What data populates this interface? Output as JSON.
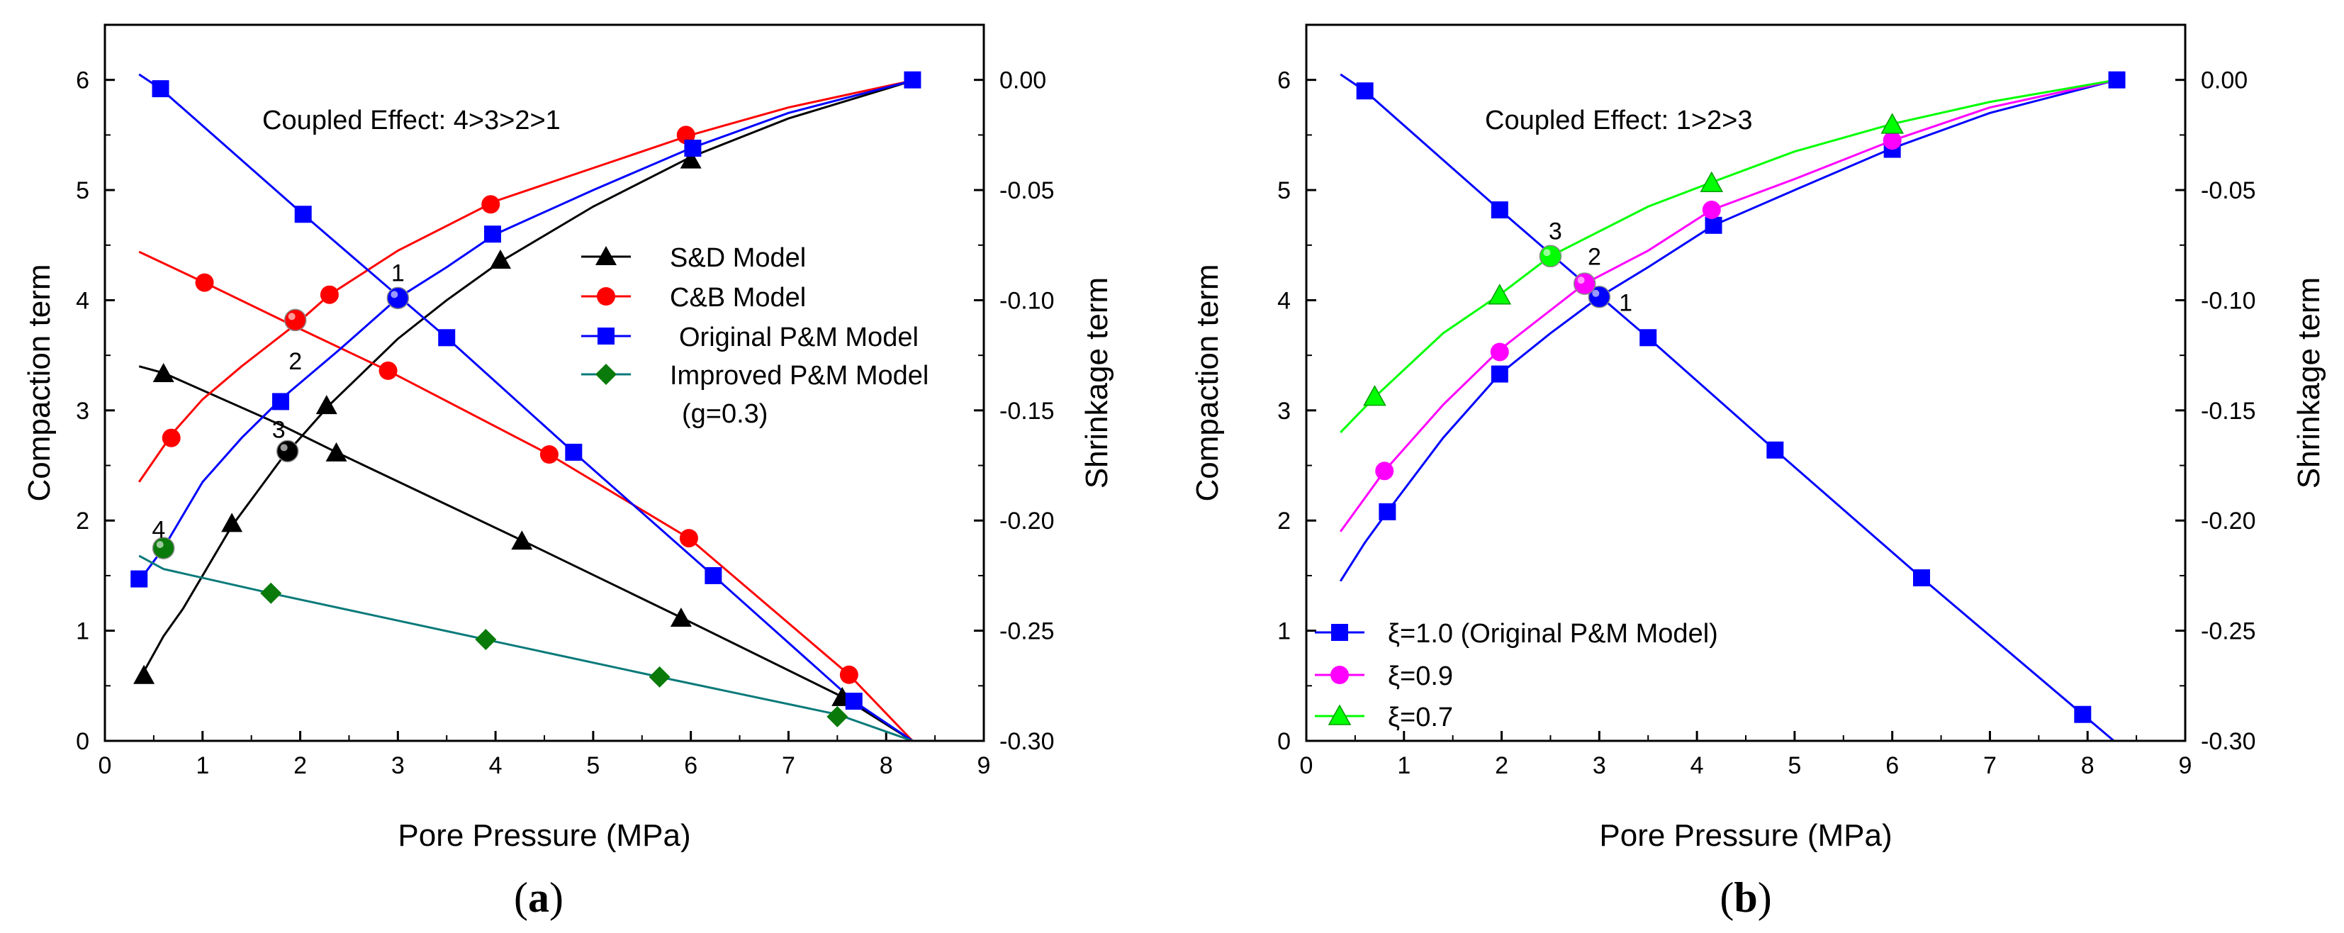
{
  "chart_data": [
    {
      "type": "line",
      "panel": "a",
      "subtitle_open": "(",
      "subtitle_letter": "a",
      "subtitle_close": ")",
      "annotation": "Coupled Effect: 4>3>2>1",
      "xlabel": "Pore Pressure (MPa)",
      "ylabel": "Compaction term",
      "y2label": "Shrinkage term",
      "xlim": [
        0,
        9
      ],
      "ylim": [
        0,
        6.5
      ],
      "y2lim": [
        -0.3,
        0.025
      ],
      "xticks": [
        "0",
        "1",
        "2",
        "3",
        "4",
        "5",
        "6",
        "7",
        "8",
        "9"
      ],
      "yticks": [
        "0",
        "1",
        "2",
        "3",
        "4",
        "5",
        "6"
      ],
      "y2ticks": [
        "-0.30",
        "-0.25",
        "-0.20",
        "-0.15",
        "-0.10",
        "-0.05",
        "0.00"
      ],
      "y2tick_values": [
        -0.3,
        -0.25,
        -0.2,
        -0.15,
        -0.1,
        -0.05,
        0
      ],
      "legend": {
        "position": "center-right",
        "entries": [
          "S&D Model",
          "C&B Model",
          "Original P&M Model",
          "Improved P&M Model"
        ],
        "extra": "(g=0.3)"
      },
      "series": [
        {
          "name": "S&D Model",
          "color": "#000000",
          "marker": "triangle",
          "compaction_line": [
            [
              0.35,
              0.55
            ],
            [
              0.6,
              0.95
            ],
            [
              0.8,
              1.2
            ],
            [
              1.3,
              1.95
            ],
            [
              1.8,
              2.55
            ],
            [
              2.3,
              3.05
            ],
            [
              3,
              3.65
            ],
            [
              3.5,
              4.0
            ],
            [
              4.05,
              4.35
            ],
            [
              5,
              4.85
            ],
            [
              6,
              5.3
            ],
            [
              7,
              5.65
            ],
            [
              8.3,
              6.0
            ]
          ],
          "compaction_markers": [
            [
              0.4,
              0.6
            ],
            [
              1.3,
              1.98
            ],
            [
              2.27,
              3.05
            ],
            [
              4.05,
              4.37
            ],
            [
              6.0,
              5.28
            ]
          ],
          "shrinkage_line": [
            [
              0.35,
              -0.13
            ],
            [
              0.6,
              -0.133
            ],
            [
              1.82,
              -0.157
            ],
            [
              2.37,
              -0.169
            ],
            [
              4.27,
              -0.209
            ],
            [
              5.9,
              -0.244
            ],
            [
              7.55,
              -0.28
            ],
            [
              8.27,
              -0.3
            ]
          ],
          "shrinkage_markers": [
            [
              0.6,
              -0.133
            ],
            [
              2.37,
              -0.169
            ],
            [
              4.27,
              -0.209
            ],
            [
              5.9,
              -0.244
            ],
            [
              7.55,
              -0.28
            ]
          ]
        },
        {
          "name": "C&B Model",
          "color": "#ff0000",
          "marker": "circle",
          "compaction_line": [
            [
              0.35,
              2.35
            ],
            [
              0.7,
              2.8
            ],
            [
              1.0,
              3.1
            ],
            [
              1.4,
              3.4
            ],
            [
              1.98,
              3.8
            ],
            [
              2.3,
              4.05
            ],
            [
              3,
              4.45
            ],
            [
              4,
              4.9
            ],
            [
              5,
              5.2
            ],
            [
              6,
              5.5
            ],
            [
              7,
              5.75
            ],
            [
              8.3,
              6.0
            ]
          ],
          "compaction_markers": [
            [
              0.68,
              2.75
            ],
            [
              2.3,
              4.05
            ],
            [
              3.95,
              4.87
            ],
            [
              5.95,
              5.5
            ]
          ],
          "shrinkage_line": [
            [
              0.35,
              -0.078
            ],
            [
              1.02,
              -0.092
            ],
            [
              1.95,
              -0.112
            ],
            [
              2.9,
              -0.132
            ],
            [
              4.55,
              -0.17
            ],
            [
              5.98,
              -0.208
            ],
            [
              7.62,
              -0.27
            ],
            [
              8.27,
              -0.3
            ]
          ],
          "shrinkage_markers": [
            [
              1.02,
              -0.092
            ],
            [
              2.9,
              -0.132
            ],
            [
              4.55,
              -0.17
            ],
            [
              5.98,
              -0.208
            ],
            [
              7.62,
              -0.27
            ]
          ]
        },
        {
          "name": "Original P&M Model",
          "color": "#0000ff",
          "marker": "square",
          "compaction_line": [
            [
              0.35,
              1.45
            ],
            [
              0.6,
              1.75
            ],
            [
              1.0,
              2.35
            ],
            [
              1.4,
              2.75
            ],
            [
              1.8,
              3.1
            ],
            [
              2.4,
              3.55
            ],
            [
              3.0,
              4.02
            ],
            [
              3.5,
              4.3
            ],
            [
              4.0,
              4.6
            ],
            [
              5,
              5.0
            ],
            [
              6,
              5.38
            ],
            [
              7,
              5.7
            ],
            [
              8.3,
              6.0
            ]
          ],
          "compaction_markers": [
            [
              0.35,
              1.47
            ],
            [
              1.8,
              3.08
            ],
            [
              3.97,
              4.6
            ],
            [
              6.02,
              5.38
            ],
            [
              8.27,
              6.0
            ]
          ],
          "shrinkage_line": [
            [
              0.35,
              0.0025
            ],
            [
              0.57,
              -0.004
            ],
            [
              2.03,
              -0.061
            ],
            [
              3.0,
              -0.098
            ],
            [
              3.5,
              -0.117
            ],
            [
              4.8,
              -0.169
            ],
            [
              6.23,
              -0.225
            ],
            [
              7.67,
              -0.282
            ],
            [
              8.27,
              -0.3
            ]
          ],
          "shrinkage_markers": [
            [
              0.57,
              -0.004
            ],
            [
              2.03,
              -0.061
            ],
            [
              3.5,
              -0.117
            ],
            [
              4.8,
              -0.169
            ],
            [
              6.23,
              -0.225
            ],
            [
              7.67,
              -0.282
            ]
          ]
        },
        {
          "name": "Improved P&M Model",
          "color": "#0a7a7a",
          "marker": "diamond",
          "shrinkage_line": [
            [
              0.35,
              -0.216
            ],
            [
              0.6,
              -0.222
            ],
            [
              1.7,
              -0.233
            ],
            [
              3.9,
              -0.254
            ],
            [
              5.68,
              -0.271
            ],
            [
              7.5,
              -0.288
            ],
            [
              8.27,
              -0.3
            ]
          ],
          "shrinkage_markers": [
            [
              1.7,
              -0.233
            ],
            [
              3.9,
              -0.254
            ],
            [
              5.68,
              -0.271
            ],
            [
              7.5,
              -0.289
            ]
          ],
          "marker_color": "#0a7a0a"
        }
      ],
      "intersections": [
        {
          "label": "1",
          "x": 3.0,
          "y": 4.02,
          "color": "#0000ff",
          "lx": 3.0,
          "ly": 4.25
        },
        {
          "label": "2",
          "x": 1.95,
          "y": 3.82,
          "color": "#ff0000",
          "lx": 1.95,
          "ly": 3.45
        },
        {
          "label": "3",
          "x": 1.87,
          "y": 2.63,
          "color": "#000000",
          "lx": 1.78,
          "ly": 2.83
        },
        {
          "label": "4",
          "x": 0.6,
          "y": 1.75,
          "color": "#0a7a0a",
          "lx": 0.55,
          "ly": 1.92
        }
      ]
    },
    {
      "type": "line",
      "panel": "b",
      "subtitle_open": "(",
      "subtitle_letter": "b",
      "subtitle_close": ")",
      "annotation": "Coupled Effect: 1>2>3",
      "xlabel": "Pore Pressure (MPa)",
      "ylabel": "Compaction term",
      "y2label": "Shrinkage term",
      "xlim": [
        0,
        9
      ],
      "ylim": [
        0,
        6.5
      ],
      "y2lim": [
        -0.3,
        0.025
      ],
      "xticks": [
        "0",
        "1",
        "2",
        "3",
        "4",
        "5",
        "6",
        "7",
        "8",
        "9"
      ],
      "yticks": [
        "0",
        "1",
        "2",
        "3",
        "4",
        "5",
        "6"
      ],
      "y2ticks": [
        "-0.30",
        "-0.25",
        "-0.20",
        "-0.15",
        "-0.10",
        "-0.05",
        "0.00"
      ],
      "y2tick_values": [
        -0.3,
        -0.25,
        -0.2,
        -0.15,
        -0.1,
        -0.05,
        0
      ],
      "legend": {
        "position": "bottom-left",
        "entries": [
          "ξ=1.0 (Original P&M Model)",
          "ξ=0.9",
          "ξ=0.7"
        ]
      },
      "series": [
        {
          "name": "ξ=1.0 (Original P&M Model)",
          "color": "#0000ff",
          "marker": "square",
          "compaction_line": [
            [
              0.35,
              1.45
            ],
            [
              0.6,
              1.8
            ],
            [
              0.83,
              2.08
            ],
            [
              1.4,
              2.75
            ],
            [
              1.98,
              3.33
            ],
            [
              2.5,
              3.7
            ],
            [
              3.0,
              4.03
            ],
            [
              3.5,
              4.3
            ],
            [
              4.17,
              4.68
            ],
            [
              5,
              5.0
            ],
            [
              6.0,
              5.38
            ],
            [
              7,
              5.7
            ],
            [
              8.3,
              6.0
            ]
          ],
          "compaction_markers": [
            [
              0.83,
              2.08
            ],
            [
              1.98,
              3.33
            ],
            [
              4.17,
              4.68
            ],
            [
              6.0,
              5.37
            ],
            [
              8.3,
              6.0
            ]
          ],
          "shrinkage_line": [
            [
              0.35,
              0.0025
            ],
            [
              0.6,
              -0.005
            ],
            [
              1.98,
              -0.059
            ],
            [
              3.0,
              -0.098
            ],
            [
              3.5,
              -0.117
            ],
            [
              4.8,
              -0.168
            ],
            [
              6.3,
              -0.226
            ],
            [
              7.95,
              -0.288
            ],
            [
              8.27,
              -0.3
            ]
          ],
          "shrinkage_markers": [
            [
              0.6,
              -0.005
            ],
            [
              1.98,
              -0.059
            ],
            [
              3.5,
              -0.117
            ],
            [
              4.8,
              -0.168
            ],
            [
              6.3,
              -0.226
            ],
            [
              7.95,
              -0.288
            ]
          ]
        },
        {
          "name": "ξ=0.9",
          "color": "#ff00ff",
          "marker": "circle",
          "compaction_line": [
            [
              0.35,
              1.9
            ],
            [
              0.8,
              2.45
            ],
            [
              1.4,
              3.05
            ],
            [
              1.98,
              3.55
            ],
            [
              2.85,
              4.15
            ],
            [
              3.5,
              4.45
            ],
            [
              4.15,
              4.82
            ],
            [
              5,
              5.1
            ],
            [
              6.0,
              5.45
            ],
            [
              7,
              5.75
            ],
            [
              8.3,
              6.0
            ]
          ],
          "compaction_markers": [
            [
              0.8,
              2.45
            ],
            [
              1.98,
              3.53
            ],
            [
              4.15,
              4.82
            ],
            [
              6.0,
              5.45
            ]
          ]
        },
        {
          "name": "ξ=0.7",
          "color": "#00ff00",
          "marker": "triangle",
          "compaction_line": [
            [
              0.35,
              2.8
            ],
            [
              0.7,
              3.12
            ],
            [
              1.4,
              3.7
            ],
            [
              1.98,
              4.05
            ],
            [
              2.5,
              4.4
            ],
            [
              3.5,
              4.85
            ],
            [
              4.15,
              5.07
            ],
            [
              5,
              5.35
            ],
            [
              6.0,
              5.6
            ],
            [
              7,
              5.8
            ],
            [
              8.3,
              6.0
            ]
          ],
          "compaction_markers": [
            [
              0.7,
              3.13
            ],
            [
              1.98,
              4.05
            ],
            [
              4.15,
              5.07
            ],
            [
              6.0,
              5.6
            ]
          ],
          "marker_edge": "#009900"
        }
      ],
      "intersections": [
        {
          "label": "1",
          "x": 3.0,
          "y": 4.03,
          "color": "#0000ff",
          "lx": 3.27,
          "ly": 3.98
        },
        {
          "label": "2",
          "x": 2.85,
          "y": 4.15,
          "color": "#ff00ff",
          "lx": 2.95,
          "ly": 4.4
        },
        {
          "label": "3",
          "x": 2.5,
          "y": 4.4,
          "color": "#00ff00",
          "lx": 2.55,
          "ly": 4.63
        }
      ]
    }
  ]
}
